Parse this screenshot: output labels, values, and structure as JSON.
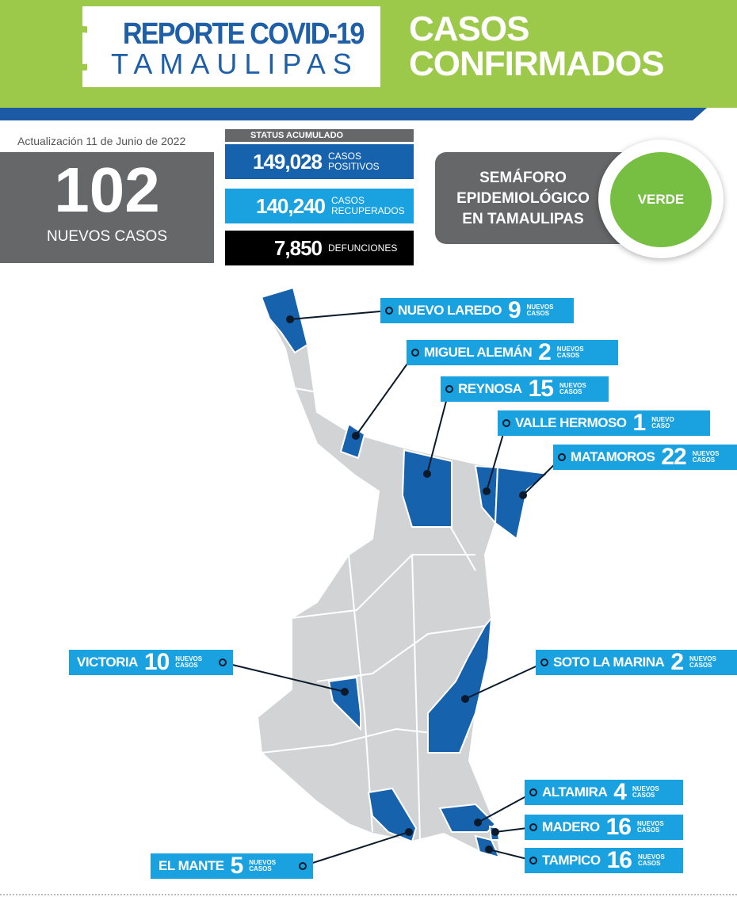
{
  "header": {
    "logo_line1": "REPORTE COVID-19",
    "logo_line2": "TAMAULIPAS",
    "title_line1": "CASOS",
    "title_line2": "CONFIRMADOS"
  },
  "update": "Actualización  11 de Junio de 2022",
  "new_cases": {
    "value": "102",
    "label": "NUEVOS CASOS"
  },
  "status": {
    "heading": "STATUS ACUMULADO",
    "items": [
      {
        "value": "149,028",
        "label1": "CASOS",
        "label2": "POSITIVOS",
        "color": "#1762ad"
      },
      {
        "value": "140,240",
        "label1": "CASOS",
        "label2": "RECUPERADOS",
        "color": "#1aa2e0"
      },
      {
        "value": "7,850",
        "label1": "DEFUNCIONES",
        "label2": "",
        "color": "#000000"
      }
    ]
  },
  "semaforo": {
    "line1": "SEMÁFORO",
    "line2": "EPIDEMIOLÓGICO",
    "line3": "EN TAMAULIPAS",
    "level": "VERDE",
    "level_color": "#76bf43"
  },
  "municipalities": [
    {
      "name": "NUEVO LAREDO",
      "count": "9",
      "suffix1": "NUEVOS",
      "suffix2": "CASOS"
    },
    {
      "name": "MIGUEL ALEMÁN",
      "count": "2",
      "suffix1": "NUEVOS",
      "suffix2": "CASOS"
    },
    {
      "name": "REYNOSA",
      "count": "15",
      "suffix1": "NUEVOS",
      "suffix2": "CASOS"
    },
    {
      "name": "VALLE HERMOSO",
      "count": "1",
      "suffix1": "NUEVO",
      "suffix2": "CASO"
    },
    {
      "name": "MATAMOROS",
      "count": "22",
      "suffix1": "NUEVOS",
      "suffix2": "CASOS"
    },
    {
      "name": "VICTORIA",
      "count": "10",
      "suffix1": "NUEVOS",
      "suffix2": "CASOS"
    },
    {
      "name": "SOTO LA MARINA",
      "count": "2",
      "suffix1": "NUEVOS",
      "suffix2": "CASOS"
    },
    {
      "name": "ALTAMIRA",
      "count": "4",
      "suffix1": "NUEVOS",
      "suffix2": "CASOS"
    },
    {
      "name": "MADERO",
      "count": "16",
      "suffix1": "NUEVOS",
      "suffix2": "CASOS"
    },
    {
      "name": "TAMPICO",
      "count": "16",
      "suffix1": "NUEVOS",
      "suffix2": "CASOS"
    },
    {
      "name": "EL MANTE",
      "count": "5",
      "suffix1": "NUEVOS",
      "suffix2": "CASOS"
    }
  ],
  "colors": {
    "banner": "#9dc94a",
    "highlight": "#1762ad",
    "label": "#1aa2e0",
    "map_base": "#d2d3d4"
  }
}
